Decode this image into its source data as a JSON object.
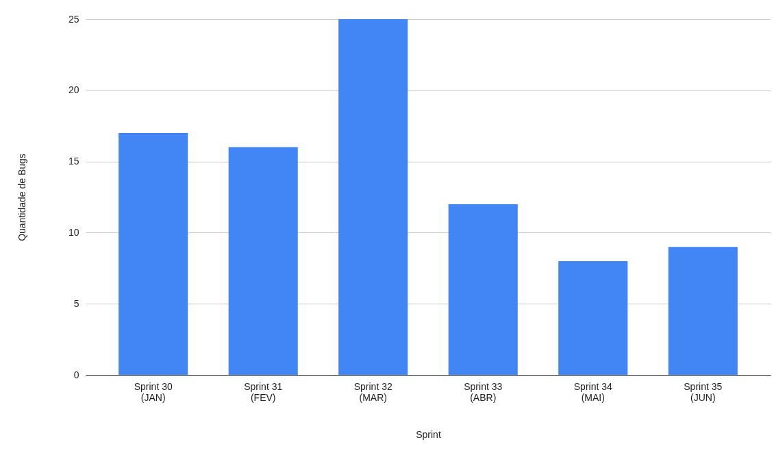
{
  "chart_data": {
    "type": "bar",
    "xlabel": "Sprint",
    "ylabel": "Quantidade de Bugs",
    "categories": [
      "Sprint 30\n(JAN)",
      "Sprint 31\n(FEV)",
      "Sprint 32\n(MAR)",
      "Sprint 33\n(ABR)",
      "Sprint 34\n(MAI)",
      "Sprint 35\n(JUN)"
    ],
    "values": [
      17,
      16,
      25,
      12,
      8,
      9
    ],
    "color": "#4285f4",
    "ylim": [
      0,
      25
    ],
    "yticks": [
      0,
      5,
      10,
      15,
      20,
      25
    ],
    "grid": "y"
  }
}
